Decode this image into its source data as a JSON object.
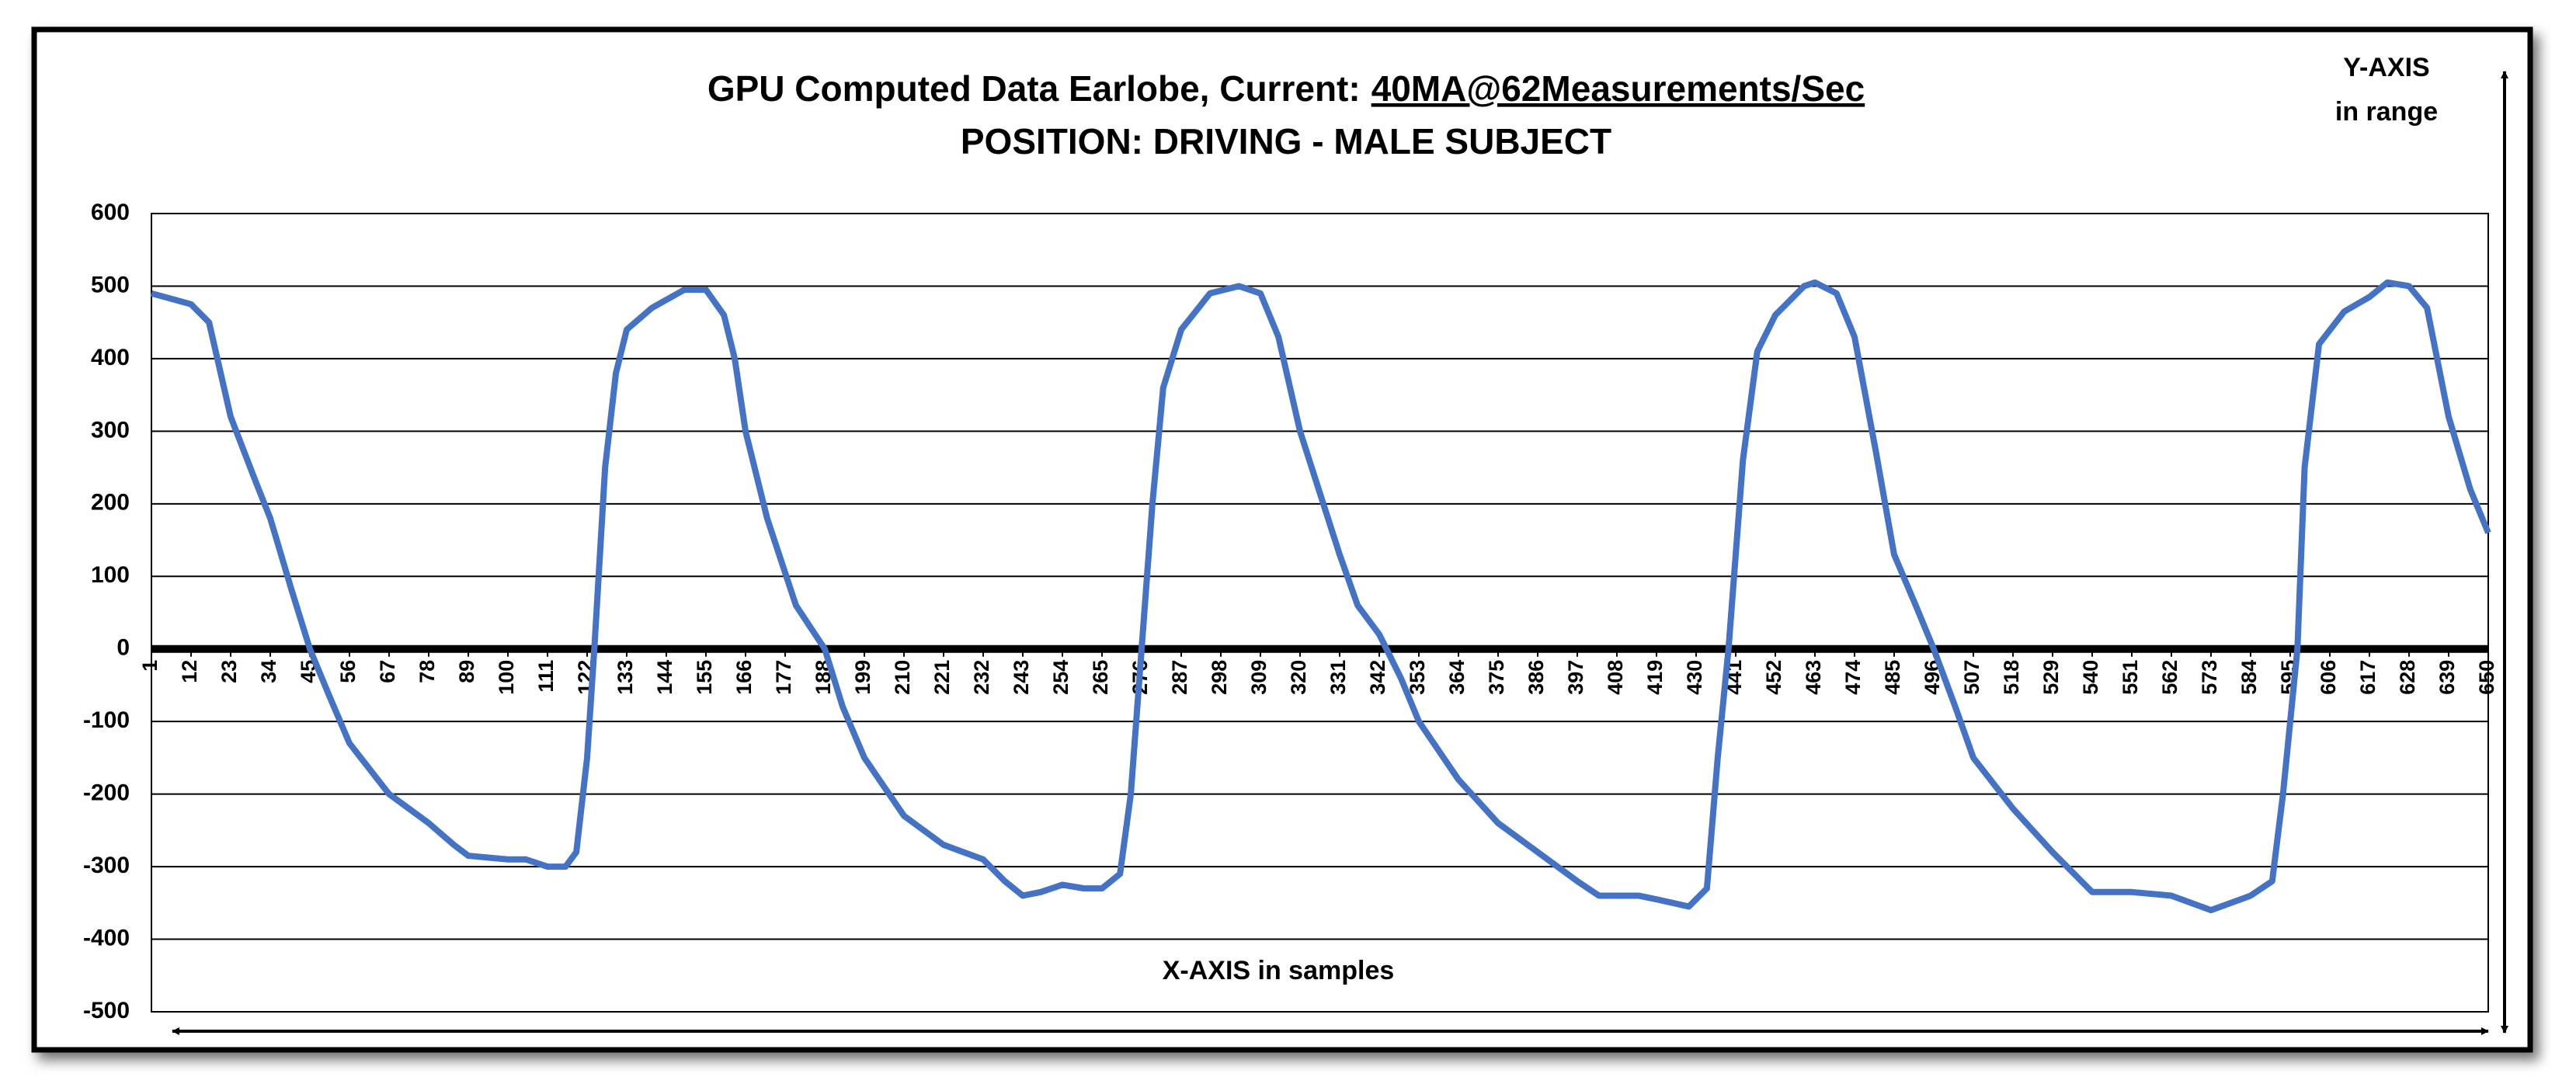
{
  "chart_data": {
    "type": "line",
    "title": "GPU Computed Data Earlobe, Current:",
    "title_highlight": "40MA@62Measurements/Sec",
    "subtitle": "POSITION: DRIVING - MALE SUBJECT",
    "y_axis_note": [
      "Y-AXIS",
      "in range"
    ],
    "x_axis_note": "X-AXIS in samples",
    "x": [
      1,
      12,
      17,
      23,
      30,
      34,
      40,
      45,
      50,
      56,
      67,
      78,
      85,
      89,
      100,
      105,
      111,
      116,
      119,
      122,
      124,
      127,
      130,
      133,
      140,
      149,
      155,
      160,
      163,
      166,
      172,
      180,
      188,
      193,
      199,
      210,
      221,
      232,
      238,
      243,
      248,
      254,
      260,
      265,
      270,
      273,
      276,
      279,
      282,
      287,
      295,
      303,
      309,
      314,
      320,
      331,
      336,
      342,
      348,
      353,
      364,
      375,
      386,
      397,
      403,
      414,
      419,
      428,
      433,
      436,
      439,
      443,
      447,
      452,
      460,
      463,
      469,
      474,
      480,
      485,
      491,
      496,
      502,
      507,
      518,
      529,
      535,
      540,
      551,
      562,
      573,
      584,
      590,
      593,
      597,
      599,
      603,
      610,
      617,
      622,
      628,
      633,
      639,
      645,
      650
    ],
    "series": [
      {
        "name": "Earlobe",
        "color": "#4472c4",
        "values": [
          490,
          475,
          450,
          320,
          230,
          180,
          80,
          0,
          -60,
          -130,
          -200,
          -240,
          -270,
          -285,
          -290,
          -290,
          -300,
          -300,
          -280,
          -150,
          0,
          250,
          380,
          440,
          470,
          495,
          495,
          460,
          400,
          300,
          180,
          60,
          0,
          -80,
          -150,
          -230,
          -270,
          -290,
          -320,
          -340,
          -335,
          -325,
          -330,
          -330,
          -310,
          -200,
          0,
          200,
          360,
          440,
          490,
          500,
          490,
          430,
          300,
          130,
          60,
          20,
          -40,
          -100,
          -180,
          -240,
          -280,
          -320,
          -340,
          -340,
          -345,
          -355,
          -330,
          -150,
          0,
          260,
          410,
          460,
          500,
          505,
          490,
          430,
          270,
          130,
          60,
          0,
          -80,
          -150,
          -220,
          -280,
          -310,
          -335,
          -335,
          -340,
          -360,
          -340,
          -320,
          -200,
          0,
          250,
          420,
          465,
          485,
          505,
          500,
          470,
          320,
          220,
          160
        ]
      }
    ],
    "xlim": [
      1,
      650
    ],
    "xticks": [
      1,
      12,
      23,
      34,
      45,
      56,
      67,
      78,
      89,
      100,
      111,
      122,
      133,
      144,
      155,
      166,
      177,
      188,
      199,
      210,
      221,
      232,
      243,
      254,
      265,
      276,
      287,
      298,
      309,
      320,
      331,
      342,
      353,
      364,
      375,
      386,
      397,
      408,
      419,
      430,
      441,
      452,
      463,
      474,
      485,
      496,
      507,
      518,
      529,
      540,
      551,
      562,
      573,
      584,
      595,
      606,
      617,
      628,
      639,
      650
    ],
    "ylim": [
      -500,
      600
    ],
    "yticks": [
      -500,
      -400,
      -300,
      -200,
      -100,
      0,
      100,
      200,
      300,
      400,
      500,
      600
    ],
    "grid": true
  }
}
